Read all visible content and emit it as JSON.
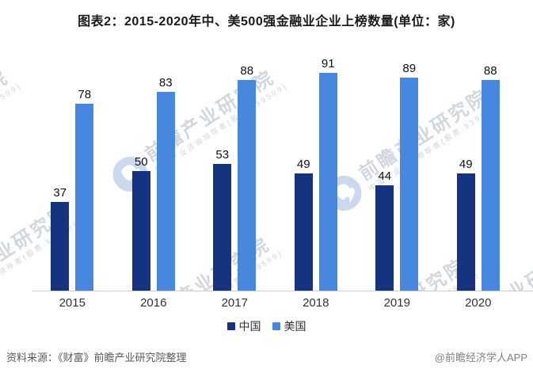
{
  "title": "图表2：2015-2020年中、美500强金融业企业上榜数量(单位：家)",
  "chart_data": {
    "type": "bar",
    "categories": [
      "2015",
      "2016",
      "2017",
      "2018",
      "2019",
      "2020"
    ],
    "series": [
      {
        "name": "中国",
        "color": "#15337E",
        "values": [
          37,
          50,
          53,
          49,
          44,
          49
        ]
      },
      {
        "name": "美国",
        "color": "#4787DE",
        "values": [
          78,
          83,
          88,
          91,
          89,
          88
        ]
      }
    ],
    "title": "图表2：2015-2020年中、美500强金融业企业上榜数量(单位：家)",
    "xlabel": "",
    "ylabel": "",
    "ylim": [
      0,
      95
    ],
    "grid": false,
    "value_labels": true,
    "legend_position": "bottom"
  },
  "legend": {
    "items": [
      {
        "label": "中国",
        "color": "#15337E"
      },
      {
        "label": "美国",
        "color": "#4787DE"
      }
    ]
  },
  "footer": {
    "source": "资料来源：《财富》前瞻产业研究院整理",
    "credit": "@前瞻经济学人APP"
  },
  "watermark": {
    "brand": "前瞻产业研究院",
    "tagline": "中国产业咨询领导者(股票:839599)",
    "logo_color": "rgba(80,130,200,0.30)"
  },
  "colors": {
    "axis_line": "#cccccc",
    "value_label": "#111111",
    "tick_label": "#333333"
  }
}
